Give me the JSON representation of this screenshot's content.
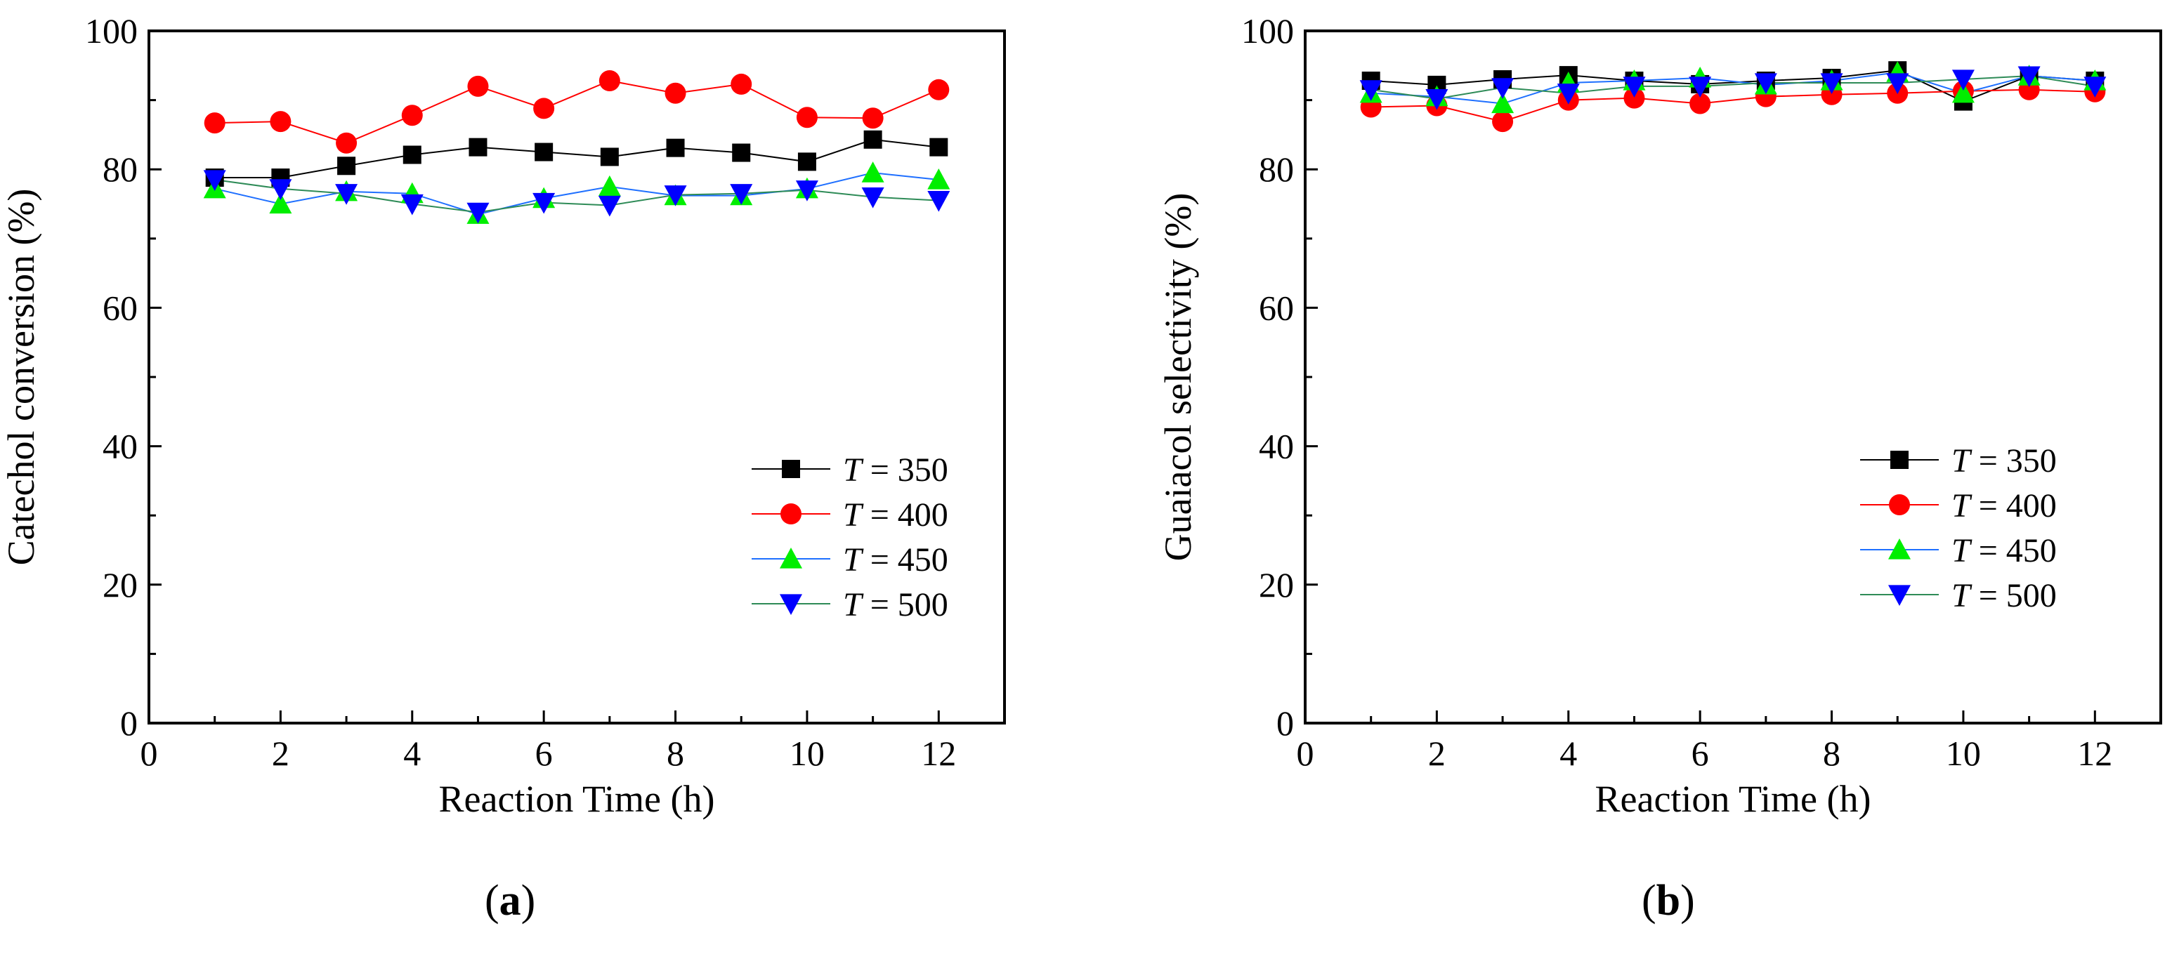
{
  "chart_data": [
    {
      "type": "line",
      "panel": "a",
      "panel_label": "a",
      "title": "",
      "xlabel": "Reaction Time (h)",
      "ylabel": "Catechol conversion (%)",
      "xlim": [
        0,
        13
      ],
      "ylim": [
        0,
        100
      ],
      "xticks": [
        0,
        2,
        4,
        6,
        8,
        10,
        12
      ],
      "yticks": [
        0,
        20,
        40,
        60,
        80,
        100
      ],
      "legend_position": "lower-right",
      "x": [
        1,
        2,
        3,
        4,
        5,
        6,
        7,
        8,
        9,
        10,
        11,
        12
      ],
      "series": [
        {
          "name": "T = 350",
          "label_var": "T",
          "label_rest": " = 350",
          "color": "#000000",
          "marker": "square",
          "values": [
            78.8,
            78.8,
            80.5,
            82.1,
            83.2,
            82.5,
            81.8,
            83.1,
            82.4,
            81.1,
            84.3,
            83.2
          ]
        },
        {
          "name": "T = 400",
          "label_var": "T",
          "label_rest": " = 400",
          "color": "#ff0000",
          "marker": "circle",
          "values": [
            86.7,
            86.9,
            83.8,
            87.8,
            92.0,
            88.8,
            92.8,
            91.0,
            92.3,
            87.5,
            87.4,
            91.5
          ]
        },
        {
          "name": "T = 450",
          "label_var": "T",
          "label_rest": " = 450",
          "color": "#00ee00",
          "line_color": "#1e6fff",
          "marker": "triangle-up",
          "values": [
            77.2,
            75.0,
            76.8,
            76.5,
            73.5,
            75.8,
            77.5,
            76.2,
            76.2,
            77.2,
            79.5,
            78.5
          ]
        },
        {
          "name": "T = 500",
          "label_var": "T",
          "label_rest": " = 500",
          "color": "#0000ff",
          "line_color": "#2e8b57",
          "marker": "triangle-down",
          "values": [
            78.5,
            77.2,
            76.5,
            75.0,
            73.8,
            75.2,
            74.8,
            76.3,
            76.5,
            77.0,
            76.0,
            75.5
          ]
        }
      ]
    },
    {
      "type": "line",
      "panel": "b",
      "panel_label": "b",
      "title": "",
      "xlabel": "Reaction Time (h)",
      "ylabel": "Guaiacol selectivity (%)",
      "xlim": [
        0,
        13
      ],
      "ylim": [
        0,
        100
      ],
      "xticks": [
        0,
        2,
        4,
        6,
        8,
        10,
        12
      ],
      "yticks": [
        0,
        20,
        40,
        60,
        80,
        100
      ],
      "legend_position": "lower-right",
      "x": [
        1,
        2,
        3,
        4,
        5,
        6,
        7,
        8,
        9,
        10,
        11,
        12
      ],
      "series": [
        {
          "name": "T = 350",
          "label_var": "T",
          "label_rest": " = 350",
          "color": "#000000",
          "marker": "square",
          "values": [
            92.8,
            92.2,
            93.0,
            93.6,
            92.8,
            92.3,
            92.8,
            93.2,
            94.3,
            89.8,
            93.5,
            92.8
          ]
        },
        {
          "name": "T = 400",
          "label_var": "T",
          "label_rest": " = 400",
          "color": "#ff0000",
          "marker": "circle",
          "values": [
            89.0,
            89.2,
            86.9,
            90.0,
            90.3,
            89.5,
            90.5,
            90.8,
            91.0,
            91.3,
            91.5,
            91.2
          ]
        },
        {
          "name": "T = 450",
          "label_var": "T",
          "label_rest": " = 450",
          "color": "#00ee00",
          "line_color": "#1e6fff",
          "marker": "triangle-up",
          "values": [
            91.0,
            90.5,
            89.5,
            92.5,
            92.8,
            93.2,
            92.2,
            92.8,
            94.0,
            91.0,
            93.5,
            92.8
          ]
        },
        {
          "name": "T = 500",
          "label_var": "T",
          "label_rest": " = 500",
          "color": "#0000ff",
          "line_color": "#2e8b57",
          "marker": "triangle-down",
          "values": [
            91.5,
            90.2,
            91.8,
            91.0,
            92.0,
            92.0,
            92.5,
            92.5,
            92.5,
            93.0,
            93.5,
            92.0
          ]
        }
      ]
    }
  ]
}
